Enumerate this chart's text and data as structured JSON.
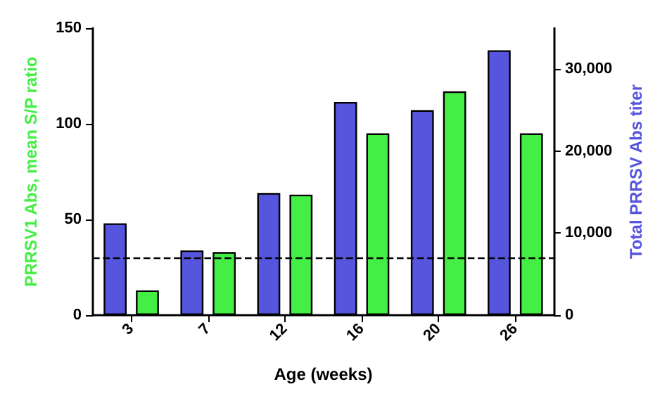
{
  "chart_data": {
    "type": "bar",
    "xlabel": "Age (weeks)",
    "ylabel": "PRRSV1 Abs, mean S/P ratio",
    "y2label": "Total PRRSV Abs titer",
    "categories": [
      "3",
      "7",
      "12",
      "16",
      "20",
      "26"
    ],
    "series": [
      {
        "color": "#5555dd",
        "axis": "y2",
        "values": [
          11200,
          7900,
          14900,
          26000,
          25000,
          32300
        ]
      },
      {
        "color": "#44ee44",
        "values": [
          13,
          33,
          63,
          95,
          117,
          95
        ]
      }
    ],
    "ylim": [
      0,
      150
    ],
    "yticks": [
      0,
      50,
      100,
      150
    ],
    "y2lim": [
      0,
      35000
    ],
    "y2ticks": [
      0,
      {
        "value": 10000,
        "label": "10,000"
      },
      {
        "value": 20000,
        "label": "20,000"
      },
      {
        "value": 30000,
        "label": "30,000"
      }
    ],
    "ref_lines": [
      {
        "axis": "y",
        "value": 30,
        "line_style": "dashed",
        "color": "#000000"
      }
    ],
    "grid": false
  }
}
